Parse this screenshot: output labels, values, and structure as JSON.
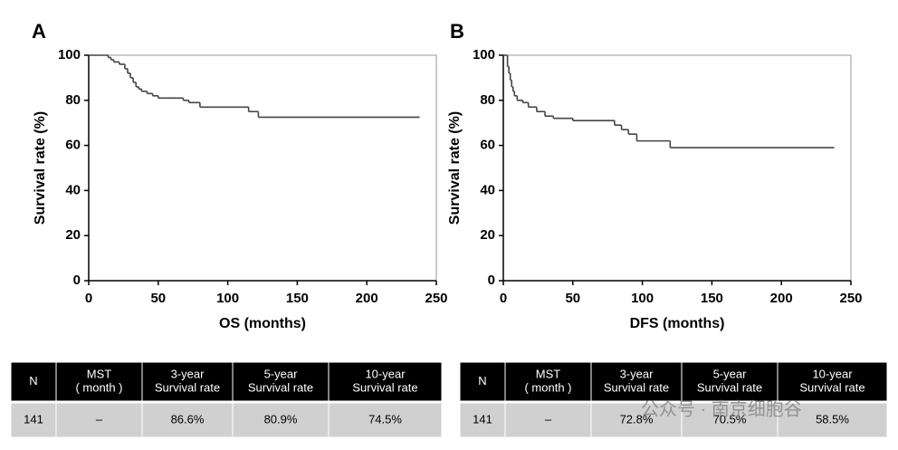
{
  "chart_data": [
    {
      "type": "step",
      "panel": "A",
      "xlabel": "OS (months)",
      "ylabel": "Survival rate (%)",
      "xlim": [
        0,
        250
      ],
      "xticks": [
        0,
        50,
        100,
        150,
        200,
        250
      ],
      "ylim": [
        0,
        100
      ],
      "yticks": [
        0,
        20,
        40,
        60,
        80,
        100
      ],
      "color": "#444444",
      "x": [
        0,
        12,
        14,
        16,
        18,
        22,
        26,
        28,
        30,
        32,
        34,
        36,
        38,
        42,
        46,
        50,
        68,
        72,
        80,
        115,
        122,
        238
      ],
      "values": [
        100,
        100,
        99,
        98,
        97,
        96,
        94,
        92,
        90,
        88,
        86,
        85,
        84,
        83,
        82,
        81,
        80,
        79,
        77,
        75,
        72.5,
        72.5
      ]
    },
    {
      "type": "step",
      "panel": "B",
      "xlabel": "DFS (months)",
      "ylabel": "Survival rate (%)",
      "xlim": [
        0,
        250
      ],
      "xticks": [
        0,
        50,
        100,
        150,
        200,
        250
      ],
      "ylim": [
        0,
        100
      ],
      "yticks": [
        0,
        20,
        40,
        60,
        80,
        100
      ],
      "color": "#444444",
      "x": [
        0,
        2,
        3,
        4,
        5,
        6,
        7,
        8,
        10,
        14,
        18,
        24,
        30,
        36,
        50,
        80,
        85,
        90,
        96,
        120,
        238
      ],
      "values": [
        100,
        100,
        95,
        92,
        89,
        86,
        84,
        82,
        80,
        79,
        77,
        75,
        73,
        72,
        71,
        69,
        67,
        65,
        62,
        59,
        59
      ]
    }
  ],
  "tables": [
    {
      "header": [
        [
          "N"
        ],
        [
          "MST",
          "( month )"
        ],
        [
          "3-year",
          "Survival rate"
        ],
        [
          "5-year",
          "Survival rate"
        ],
        [
          "10-year",
          "Survival rate"
        ]
      ],
      "row": [
        "141",
        "–",
        "86.6%",
        "80.9%",
        "74.5%"
      ]
    },
    {
      "header": [
        [
          "N"
        ],
        [
          "MST",
          "( month )"
        ],
        [
          "3-year",
          "Survival rate"
        ],
        [
          "5-year",
          "Survival rate"
        ],
        [
          "10-year",
          "Survival rate"
        ]
      ],
      "row": [
        "141",
        "–",
        "72.8%",
        "70.5%",
        "58.5%"
      ]
    }
  ],
  "watermark": "公众号 · 南京细胞谷"
}
